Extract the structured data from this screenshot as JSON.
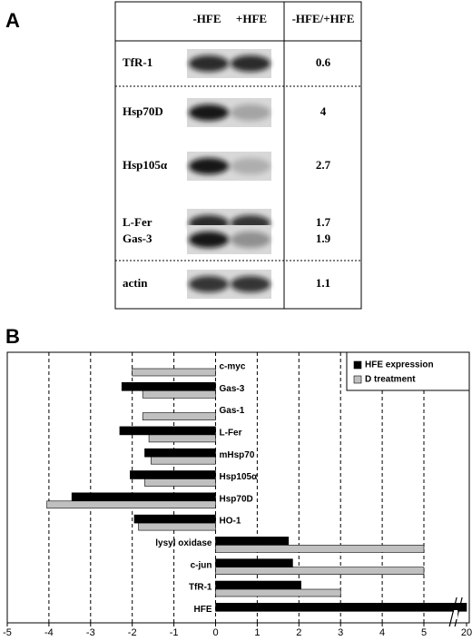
{
  "panel_a": {
    "label": "A",
    "columns": [
      "-HFE",
      "+HFE",
      "-HFE/+HFE"
    ],
    "rows": [
      {
        "gene": "TfR-1",
        "ratio": 0.6
      },
      {
        "gene": "Hsp70D",
        "ratio": 4
      },
      {
        "gene": "Hsp105α",
        "ratio": 2.7
      },
      {
        "gene": "L-Fer",
        "ratio": 1.7
      },
      {
        "gene": "Gas-3",
        "ratio": 1.9
      },
      {
        "gene": "actin",
        "ratio": 1.1
      }
    ]
  },
  "chart_data": {
    "type": "bar",
    "orientation": "horizontal",
    "label": "B",
    "categories": [
      "c-myc",
      "Gas-3",
      "Gas-1",
      "L-Fer",
      "mHsp70",
      "Hsp105α",
      "Hsp70D",
      "HO-1",
      "lysyl oxidase",
      "c-jun",
      "TfR-1",
      "HFE"
    ],
    "series": [
      {
        "name": "HFE expression",
        "color": "#000000",
        "values": [
          null,
          -2.25,
          null,
          -2.3,
          -1.7,
          -2.05,
          -3.45,
          -1.95,
          1.75,
          1.85,
          2.05,
          20
        ]
      },
      {
        "name": "D treatment",
        "color": "#c0c0c0",
        "values": [
          -2,
          -1.75,
          -1.75,
          -1.6,
          -1.55,
          -1.7,
          -4.05,
          -1.85,
          5,
          5,
          3,
          null
        ]
      }
    ],
    "xlim": [
      -5,
      20
    ],
    "xticks": [
      -5,
      -4,
      -3,
      -2,
      -1,
      0,
      1,
      2,
      3,
      4,
      5,
      20
    ],
    "axis_break": [
      5.7,
      19.8
    ],
    "grid": true,
    "legend": "top-right"
  }
}
